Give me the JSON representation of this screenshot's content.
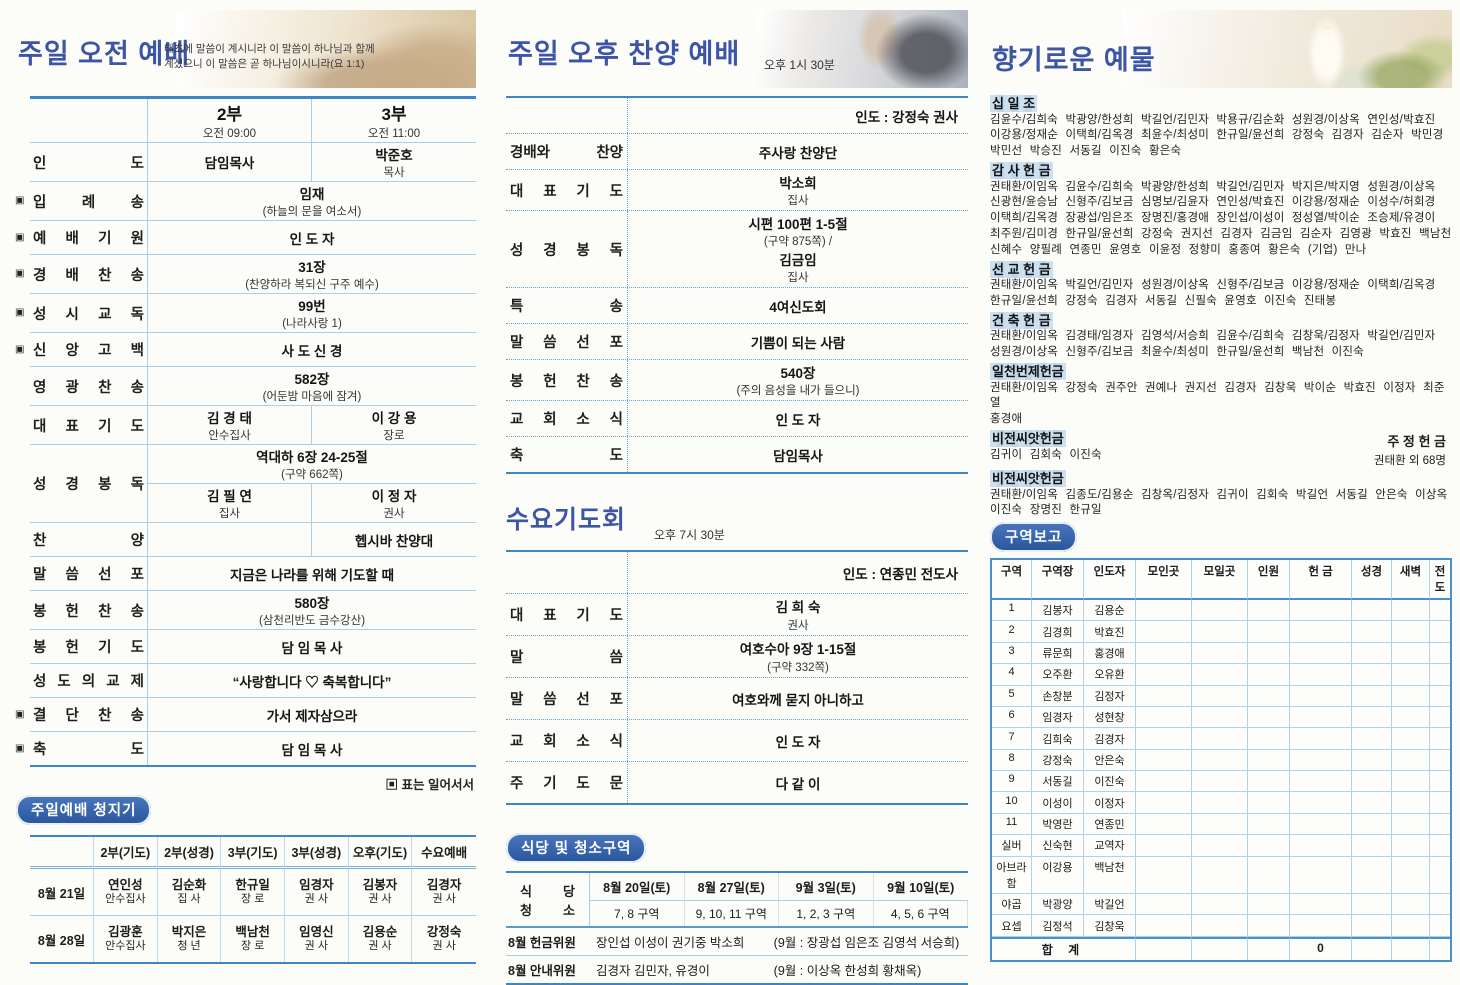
{
  "morning": {
    "title": "주일 오전 예배",
    "verse_line1": "태초에 말씀이 계시니라 이 말씀이 하나님과 함께",
    "verse_line2": "계셨으니 이 말씀은 곧 하나님이시니라(요 1:1)",
    "standing_note": "▣ 표는 일어서서",
    "rows": [
      {
        "type": "head",
        "c1": [
          {
            "x": "2부 ",
            "k": "b"
          },
          {
            "x": "오전 09:00",
            "k": "s"
          }
        ],
        "c2": [
          {
            "x": "3부 ",
            "k": "b"
          },
          {
            "x": "오전 11:00",
            "k": "s"
          }
        ]
      },
      {
        "m": false,
        "label": "인 도",
        "type": "split",
        "v1": [
          {
            "x": "담임목사",
            "k": "t"
          }
        ],
        "v2": [
          {
            "x": "박준호 ",
            "k": "t"
          },
          {
            "x": "목사",
            "k": "s"
          }
        ]
      },
      {
        "m": true,
        "label": "입 례 송",
        "type": "span",
        "v": [
          {
            "x": "임재 ",
            "k": "t"
          },
          {
            "x": "(하늘의 문을 여소서)",
            "k": "s"
          }
        ]
      },
      {
        "m": true,
        "label": "예 배 기 원",
        "type": "span",
        "v": [
          {
            "x": "인 도 자",
            "k": "t"
          }
        ]
      },
      {
        "m": true,
        "label": "경 배 찬 송",
        "type": "span",
        "v": [
          {
            "x": "31장 ",
            "k": "t"
          },
          {
            "x": "(찬양하라 복되신 구주 예수)",
            "k": "s"
          }
        ]
      },
      {
        "m": true,
        "label": "성 시 교 독",
        "type": "span",
        "v": [
          {
            "x": "99번 ",
            "k": "t"
          },
          {
            "x": "(나라사랑 1)",
            "k": "s"
          }
        ]
      },
      {
        "m": true,
        "label": "신 앙 고 백",
        "type": "span",
        "v": [
          {
            "x": "사 도 신 경",
            "k": "t"
          }
        ]
      },
      {
        "m": false,
        "label": "영 광 찬 송",
        "type": "span",
        "v": [
          {
            "x": "582장 ",
            "k": "t"
          },
          {
            "x": "(어둔밤 마음에 잠겨)",
            "k": "s"
          }
        ]
      },
      {
        "m": false,
        "label": "대 표 기 도",
        "type": "split",
        "v1": [
          {
            "x": "김 경 태 ",
            "k": "t"
          },
          {
            "x": "안수집사",
            "k": "s"
          }
        ],
        "v2": [
          {
            "x": "이 강 용 ",
            "k": "t"
          },
          {
            "x": "장로",
            "k": "s"
          }
        ]
      },
      {
        "m": false,
        "label": "성 경 봉 독",
        "type": "double",
        "top": [
          {
            "x": "역대하 6장 24-25절 ",
            "k": "t"
          },
          {
            "x": "(구약 662쪽)",
            "k": "s"
          }
        ],
        "v1": [
          {
            "x": "김 필 연 ",
            "k": "t"
          },
          {
            "x": "집사",
            "k": "s"
          }
        ],
        "v2": [
          {
            "x": "이 정 자 ",
            "k": "t"
          },
          {
            "x": "권사",
            "k": "s"
          }
        ]
      },
      {
        "m": false,
        "label": "찬 양",
        "type": "split",
        "v1": [],
        "v2": [
          {
            "x": "헵시바 찬양대",
            "k": "t"
          }
        ]
      },
      {
        "m": false,
        "label": "말 씀 선 포",
        "type": "span",
        "v": [
          {
            "x": "지금은 나라를 위해 기도할 때",
            "k": "t"
          }
        ]
      },
      {
        "m": false,
        "label": "봉 헌 찬 송",
        "type": "span",
        "v": [
          {
            "x": "580장 ",
            "k": "t"
          },
          {
            "x": "(삼천리반도 금수강산)",
            "k": "s"
          }
        ]
      },
      {
        "m": false,
        "label": "봉 헌 기 도",
        "type": "span",
        "v": [
          {
            "x": "담 임 목 사",
            "k": "t"
          }
        ]
      },
      {
        "m": false,
        "label": "성 도 의 교 제",
        "type": "span",
        "v": [
          {
            "x": "“사랑합니다 ♡ 축복합니다”",
            "k": "t"
          }
        ]
      },
      {
        "m": true,
        "label": "결 단 찬 송",
        "type": "span",
        "v": [
          {
            "x": "가서 제자삼으라",
            "k": "t"
          }
        ]
      },
      {
        "m": true,
        "label": "축 도",
        "type": "span",
        "v": [
          {
            "x": "담 임 목 사",
            "k": "t"
          }
        ]
      }
    ],
    "stewards": {
      "badge": "주일예배 청지기",
      "headers": [
        "",
        "2부(기도)",
        "2부(성경)",
        "3부(기도)",
        "3부(성경)",
        "오후(기도)",
        "수요예배"
      ],
      "rows": [
        {
          "date": "8월 21일",
          "cells": [
            [
              "연인성",
              "안수집사"
            ],
            [
              "김순화",
              "집 사"
            ],
            [
              "한규일",
              "장 로"
            ],
            [
              "임경자",
              "권 사"
            ],
            [
              "김봉자",
              "권 사"
            ],
            [
              "김경자",
              "권 사"
            ]
          ]
        },
        {
          "date": "8월 28일",
          "cells": [
            [
              "김광훈",
              "안수집사"
            ],
            [
              "박지은",
              "청 년"
            ],
            [
              "백남천",
              "장 로"
            ],
            [
              "임영신",
              "권 사"
            ],
            [
              "김용순",
              "권 사"
            ],
            [
              "강정숙",
              "권 사"
            ]
          ]
        }
      ]
    }
  },
  "afternoon": {
    "title": "주일 오후 찬양 예배",
    "time": "오후 1시 30분",
    "rows": [
      {
        "type": "lead",
        "lead": "인도 : 강정숙 권사"
      },
      {
        "label": "경배와 찬양",
        "v": [
          {
            "x": "주사랑 찬양단",
            "k": "t"
          }
        ]
      },
      {
        "label": "대 표 기 도",
        "v": [
          {
            "x": "박소희 ",
            "k": "t"
          },
          {
            "x": "집사",
            "k": "s"
          }
        ]
      },
      {
        "label": "성 경 봉 독",
        "v": [
          {
            "x": "시편 100편 1-5절 ",
            "k": "t"
          },
          {
            "x": "(구약 875쪽) / ",
            "k": "s"
          },
          {
            "x": "김금임 ",
            "k": "t"
          },
          {
            "x": "집사",
            "k": "s"
          }
        ]
      },
      {
        "label": "특 송",
        "v": [
          {
            "x": "4여신도회",
            "k": "t"
          }
        ]
      },
      {
        "label": "말 씀 선 포",
        "v": [
          {
            "x": "기쁨이 되는 사람",
            "k": "t"
          }
        ]
      },
      {
        "label": "봉 헌 찬 송",
        "v": [
          {
            "x": "540장 ",
            "k": "t"
          },
          {
            "x": "(주의 음성을 내가 들으니)",
            "k": "s"
          }
        ]
      },
      {
        "label": "교 회 소 식",
        "v": [
          {
            "x": "인 도 자",
            "k": "t"
          }
        ]
      },
      {
        "label": "축 도",
        "v": [
          {
            "x": "담임목사",
            "k": "t"
          }
        ]
      }
    ]
  },
  "wednesday": {
    "title": "수요기도회",
    "time": "오후 7시 30분",
    "rows": [
      {
        "type": "lead",
        "lead": "인도 : 연종민 전도사"
      },
      {
        "label": "대 표 기 도",
        "v": [
          {
            "x": "김 희 숙 ",
            "k": "t"
          },
          {
            "x": "권사",
            "k": "s"
          }
        ]
      },
      {
        "label": "말 씀",
        "v": [
          {
            "x": "여호수아 9장 1-15절 ",
            "k": "t"
          },
          {
            "x": "(구약 332쪽)",
            "k": "s"
          }
        ]
      },
      {
        "label": "말 씀 선 포",
        "v": [
          {
            "x": "여호와께 묻지 아니하고",
            "k": "t"
          }
        ]
      },
      {
        "label": "교 회 소 식",
        "v": [
          {
            "x": "인 도 자",
            "k": "t"
          }
        ]
      },
      {
        "label": "주 기 도 문",
        "v": [
          {
            "x": "다 같 이",
            "k": "t"
          }
        ]
      }
    ]
  },
  "cleaning": {
    "badge": "식당 및 청소구역",
    "label_line1": "식 당",
    "label_line2": "청 소",
    "dates": [
      "8월 20일(토)",
      "8월 27일(토)",
      "9월 3일(토)",
      "9월 10일(토)"
    ],
    "zones": [
      "7, 8 구역",
      "9, 10, 11 구역",
      "1, 2, 3 구역",
      "4, 5, 6 구역"
    ],
    "committees": [
      {
        "label": "8월 헌금위원",
        "members": "장인섭 이성이 권기중 박소희",
        "next": "(9월 : 장광섭 임은조 김영석 서승희)"
      },
      {
        "label": "8월 안내위원",
        "members": "김경자 김민자, 유경이",
        "next": "(9월 : 이상옥 한성희 황채옥)"
      }
    ]
  },
  "offerings": {
    "title": "향기로운 예물",
    "sections": [
      {
        "name": "십 일 조",
        "lines": [
          "김윤수/김희숙 박광양/한성희 박길언/김민자 박용규/김순화 성원경/이상옥 연인성/박효진",
          "이강용/정재순 이택희/김옥경 최윤수/최성미 한규일/윤선희 강정숙 김경자 김순자 박민경",
          "박민선 박승진 서동길 이진숙 황은숙"
        ]
      },
      {
        "name": "감 사 헌 금",
        "lines": [
          "권태환/이임옥 김윤수/김희숙 박광양/한성희 박길언/김민자 박지은/박지영 성원경/이상옥",
          "신광현/윤승남 신형주/김보금 심명보/김윤자 연인성/박효진 이강용/정재순 이성수/허회경",
          "이택희/김옥경 장광섭/임은조 장명진/홍경애 장인섭/이성이 정성열/박이순 조승제/유경이",
          "최주원/김미경 한규일/윤선희 강정숙 권지선 김경자 김금임 김순자 김영광 박효진 백남천",
          "신혜수 양필례 연종민 윤영호 이윤정 정향미 홍종여 황은숙 (기업) 만나"
        ]
      },
      {
        "name": "선 교 헌 금",
        "lines": [
          "권태환/이임옥 박길언/김민자 성원경/이상옥 신형주/김보금 이강용/정재순 이택희/김옥경",
          "한규일/윤선희 강정숙 김경자 서동길 신필숙 윤영호 이진숙 진태봉"
        ]
      },
      {
        "name": "건 축 헌 금",
        "lines": [
          "권태환/이임옥 김경태/임경자 김영석/서승희 김윤수/김희숙 김창욱/김정자 박길언/김민자",
          "성원경/이상옥 신형주/김보금 최윤수/최성미 한규일/윤선희 백남천 이진숙"
        ]
      },
      {
        "name": "일천번제헌금",
        "lines": [
          "권태환/이임옥 강정숙 권주안 권예나 권지선 김경자 김창욱 박이순 박효진 이정자 최준열",
          "홍경애"
        ]
      }
    ],
    "vision1": {
      "name": "비전씨앗헌금",
      "lines": [
        "김귀이 김회숙 이진숙"
      ]
    },
    "weekly": {
      "name": "주 정 헌 금",
      "value": "권태환 외 68명"
    },
    "vision2": {
      "name": "비전씨앗헌금",
      "lines": [
        "권태환/이임옥 김종도/김용순 김창옥/김정자 김귀이 김회숙 박길언 서동길 안은숙 이상옥",
        "이진숙 장명진 한규일"
      ]
    }
  },
  "district": {
    "badge": "구역보고",
    "headers": [
      "구역",
      "구역장",
      "인도자",
      "모인곳",
      "모일곳",
      "인원",
      "헌 금",
      "성경",
      "새벽",
      "전도"
    ],
    "rows": [
      [
        "1",
        "김봉자",
        "김용순"
      ],
      [
        "2",
        "김경희",
        "박효진"
      ],
      [
        "3",
        "류문희",
        "홍경애"
      ],
      [
        "4",
        "오주환",
        "오유환"
      ],
      [
        "5",
        "손창분",
        "김정자"
      ],
      [
        "6",
        "임경자",
        "성현창"
      ],
      [
        "7",
        "김희숙",
        "김경자"
      ],
      [
        "8",
        "강정숙",
        "안은숙"
      ],
      [
        "9",
        "서동길",
        "이진숙"
      ],
      [
        "10",
        "이성이",
        "이정자"
      ],
      [
        "11",
        "박영란",
        "연종민"
      ],
      [
        "실버",
        "신숙현",
        "교역자"
      ],
      [
        "아브라함",
        "이강용",
        "백남천"
      ],
      [
        "야곱",
        "박광양",
        "박길언"
      ],
      [
        "요셉",
        "김정석",
        "김창욱"
      ]
    ],
    "total_label": "합 계",
    "total_value": "0"
  }
}
